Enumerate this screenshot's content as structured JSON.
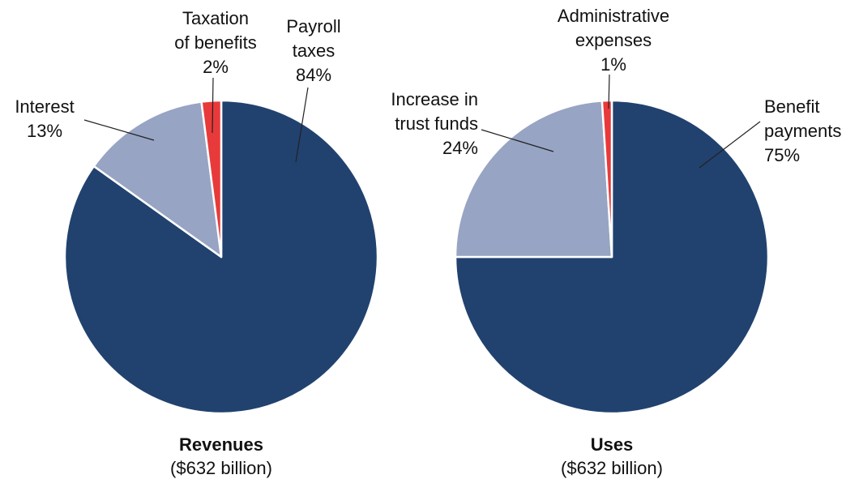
{
  "chart_data": [
    {
      "type": "pie",
      "title": "Revenues",
      "subtitle": "($632 billion)",
      "categories": [
        "Payroll\ntaxes",
        "Interest",
        "Taxation\nof benefits"
      ],
      "values": [
        84,
        13,
        2
      ],
      "value_labels": [
        "84%",
        "13%",
        "2%"
      ],
      "colors": [
        "#21426f",
        "#97a4c3",
        "#e83a3a"
      ]
    },
    {
      "type": "pie",
      "title": "Uses",
      "subtitle": "($632 billion)",
      "categories": [
        "Benefit\npayments",
        "Increase in\ntrust funds",
        "Administrative\nexpenses"
      ],
      "values": [
        75,
        24,
        1
      ],
      "value_labels": [
        "75%",
        "24%",
        "1%"
      ],
      "colors": [
        "#21426f",
        "#97a4c3",
        "#e83a3a"
      ]
    }
  ]
}
